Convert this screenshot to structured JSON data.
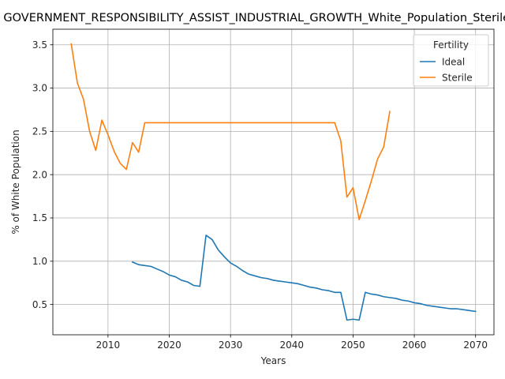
{
  "chart_data": {
    "type": "line",
    "title": "GOVERNMENT_RESPONSIBILITY_ASSIST_INDUSTRIAL_GROWTH_White_Population_Sterile_Ideal",
    "xlabel": "Years",
    "ylabel": "% of White Population",
    "xlim": [
      2001,
      2073
    ],
    "ylim": [
      0.15,
      3.68
    ],
    "xticks": [
      2010,
      2020,
      2030,
      2040,
      2050,
      2060,
      2070
    ],
    "yticks": [
      0.5,
      1.0,
      1.5,
      2.0,
      2.5,
      3.0,
      3.5
    ],
    "xtick_labels": [
      "2010",
      "2020",
      "2030",
      "2040",
      "2050",
      "2060",
      "2070"
    ],
    "ytick_labels": [
      "0.5",
      "1.0",
      "1.5",
      "2.0",
      "2.5",
      "3.0",
      "3.5"
    ],
    "grid": true,
    "legend": {
      "title": "Fertility",
      "placement": "top-right"
    },
    "series": [
      {
        "name": "Ideal",
        "color": "#1f77b4",
        "x": [
          2014,
          2015,
          2016,
          2017,
          2018,
          2019,
          2020,
          2021,
          2022,
          2023,
          2024,
          2025,
          2026,
          2027,
          2028,
          2029,
          2030,
          2031,
          2032,
          2033,
          2034,
          2035,
          2036,
          2037,
          2038,
          2039,
          2040,
          2041,
          2042,
          2043,
          2044,
          2045,
          2046,
          2047,
          2048,
          2049,
          2050,
          2051,
          2052,
          2053,
          2054,
          2055,
          2056,
          2057,
          2058,
          2059,
          2060,
          2061,
          2062,
          2063,
          2064,
          2065,
          2066,
          2067,
          2068,
          2069,
          2070
        ],
        "y": [
          0.99,
          0.96,
          0.95,
          0.94,
          0.91,
          0.88,
          0.84,
          0.82,
          0.78,
          0.76,
          0.72,
          0.71,
          1.3,
          1.25,
          1.13,
          1.05,
          0.98,
          0.94,
          0.89,
          0.85,
          0.83,
          0.81,
          0.8,
          0.78,
          0.77,
          0.76,
          0.75,
          0.74,
          0.72,
          0.7,
          0.69,
          0.67,
          0.66,
          0.64,
          0.64,
          0.32,
          0.33,
          0.32,
          0.64,
          0.62,
          0.61,
          0.59,
          0.58,
          0.57,
          0.55,
          0.54,
          0.52,
          0.51,
          0.49,
          0.48,
          0.47,
          0.46,
          0.45,
          0.45,
          0.44,
          0.43,
          0.42
        ]
      },
      {
        "name": "Sterile",
        "color": "#ff7f0e",
        "x": [
          2004,
          2005,
          2006,
          2007,
          2008,
          2009,
          2010,
          2011,
          2012,
          2013,
          2014,
          2015,
          2016,
          2017,
          2018,
          2019,
          2020,
          2021,
          2022,
          2023,
          2024,
          2025,
          2026,
          2027,
          2028,
          2029,
          2030,
          2031,
          2032,
          2033,
          2034,
          2035,
          2036,
          2037,
          2038,
          2039,
          2040,
          2041,
          2042,
          2043,
          2044,
          2045,
          2046,
          2047,
          2048,
          2049,
          2050,
          2051,
          2052,
          2053,
          2054,
          2055,
          2056
        ],
        "y": [
          3.51,
          3.06,
          2.87,
          2.5,
          2.28,
          2.63,
          2.46,
          2.27,
          2.13,
          2.06,
          2.37,
          2.26,
          2.6,
          2.6,
          2.6,
          2.6,
          2.6,
          2.6,
          2.6,
          2.6,
          2.6,
          2.6,
          2.6,
          2.6,
          2.6,
          2.6,
          2.6,
          2.6,
          2.6,
          2.6,
          2.6,
          2.6,
          2.6,
          2.6,
          2.6,
          2.6,
          2.6,
          2.6,
          2.6,
          2.6,
          2.6,
          2.6,
          2.6,
          2.6,
          2.39,
          1.74,
          1.85,
          1.48,
          1.7,
          1.93,
          2.18,
          2.32,
          2.73
        ]
      }
    ]
  }
}
